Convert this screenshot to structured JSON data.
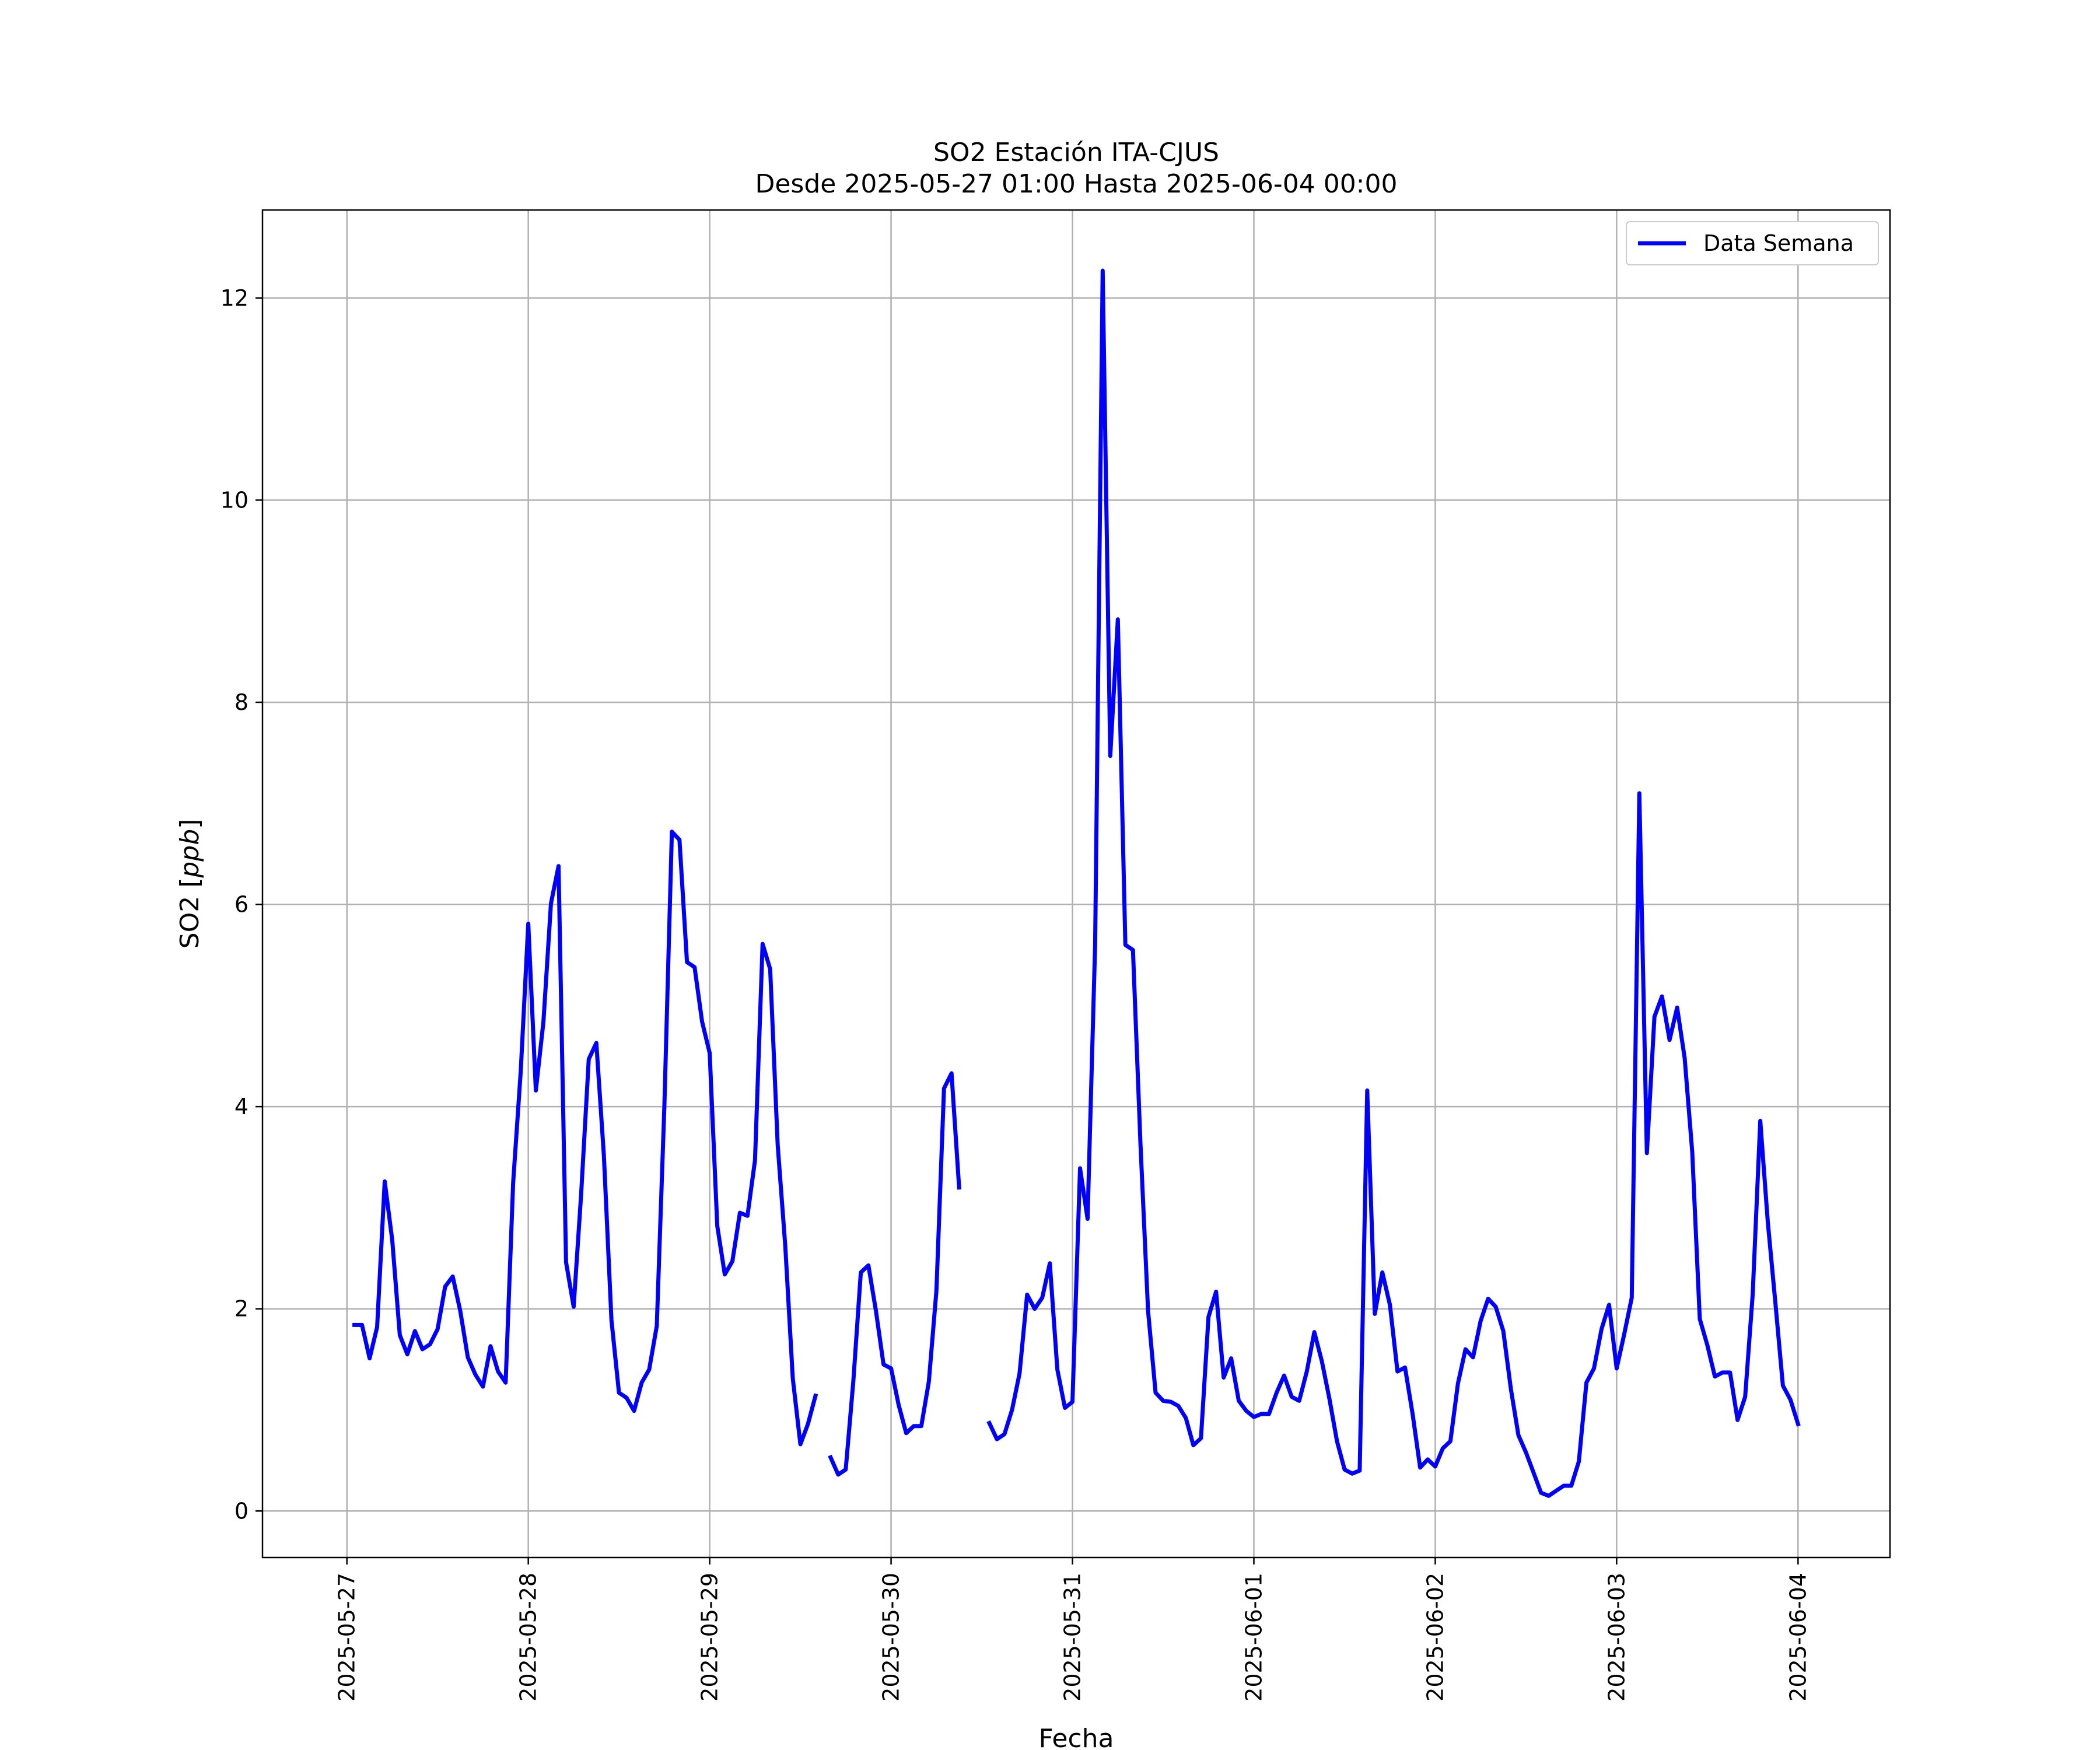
{
  "chart_data": {
    "type": "line",
    "title": "SO2 Estación ITA-CJUS",
    "subtitle": "Desde 2025-05-27 01:00 Hasta 2025-06-04 00:00",
    "xlabel": "Fecha",
    "ylabel": "SO2 [ppb]",
    "ylabel_prefix": "SO2 [",
    "ylabel_unit": "ppb",
    "ylabel_suffix": "]",
    "ylim": [
      -0.46,
      12.87
    ],
    "xlim": [
      "2025-05-26 12:50",
      "2025-06-04 12:10"
    ],
    "yticks": [
      0,
      2,
      4,
      6,
      8,
      10,
      12
    ],
    "xticks": [
      "2025-05-27",
      "2025-05-28",
      "2025-05-29",
      "2025-05-30",
      "2025-05-31",
      "2025-06-01",
      "2025-06-02",
      "2025-06-03",
      "2025-06-04"
    ],
    "grid": true,
    "legend_position": "top-right",
    "series": [
      {
        "name": "Data Semana",
        "color": "#0000ff",
        "start": "2025-05-27 01:00",
        "interval_hours": 1,
        "values": [
          1.84,
          1.84,
          1.51,
          1.82,
          3.26,
          2.68,
          1.74,
          1.55,
          1.78,
          1.6,
          1.65,
          1.8,
          2.22,
          2.32,
          1.98,
          1.52,
          1.35,
          1.23,
          1.63,
          1.38,
          1.27,
          3.25,
          4.35,
          5.81,
          4.16,
          4.84,
          6.01,
          6.38,
          2.46,
          2.02,
          3.14,
          4.47,
          4.63,
          3.52,
          1.89,
          1.17,
          1.12,
          0.99,
          1.27,
          1.4,
          1.83,
          4.0,
          6.72,
          6.64,
          5.43,
          5.38,
          4.84,
          4.53,
          2.82,
          2.34,
          2.47,
          2.95,
          2.92,
          3.47,
          5.61,
          5.36,
          3.62,
          2.62,
          1.31,
          0.66,
          0.86,
          1.14,
          null,
          0.53,
          0.36,
          0.41,
          1.28,
          2.36,
          2.43,
          1.98,
          1.45,
          1.41,
          1.05,
          0.77,
          0.84,
          0.84,
          1.28,
          2.18,
          4.18,
          4.33,
          3.2,
          null,
          null,
          null,
          0.87,
          0.71,
          0.76,
          1.0,
          1.36,
          2.14,
          2.0,
          2.11,
          2.45,
          1.4,
          1.02,
          1.08,
          3.39,
          2.89,
          5.61,
          12.27,
          7.47,
          8.82,
          5.6,
          5.55,
          3.63,
          1.98,
          1.17,
          1.09,
          1.08,
          1.04,
          0.92,
          0.65,
          0.72,
          1.92,
          2.17,
          1.32,
          1.51,
          1.09,
          0.99,
          0.93,
          0.96,
          0.96,
          1.17,
          1.34,
          1.13,
          1.09,
          1.38,
          1.77,
          1.48,
          1.11,
          0.69,
          0.41,
          0.37,
          0.4,
          4.16,
          1.95,
          2.36,
          2.04,
          1.38,
          1.42,
          0.96,
          0.43,
          0.51,
          0.44,
          0.62,
          0.69,
          1.26,
          1.6,
          1.52,
          1.88,
          2.1,
          2.02,
          1.78,
          1.21,
          0.75,
          0.58,
          0.38,
          0.18,
          0.15,
          0.2,
          0.25,
          0.25,
          0.49,
          1.27,
          1.41,
          1.8,
          2.04,
          1.41,
          1.75,
          2.11,
          7.1,
          3.54,
          4.89,
          5.09,
          4.66,
          4.98,
          4.48,
          3.55,
          1.9,
          1.64,
          1.33,
          1.37,
          1.37,
          0.9,
          1.13,
          2.14,
          3.86,
          2.86,
          2.06,
          1.24,
          1.1,
          0.86
        ]
      }
    ]
  }
}
